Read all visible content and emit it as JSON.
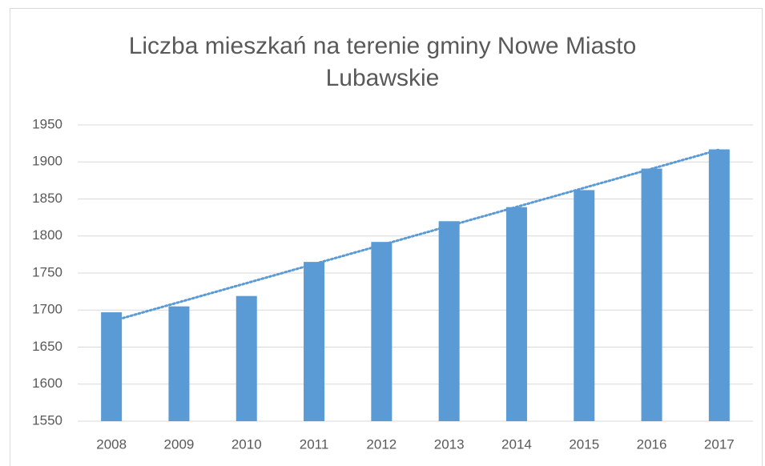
{
  "chart_data": {
    "type": "bar",
    "title": "Liczba mieszkań na terenie gminy Nowe Miasto Lubawskie",
    "categories": [
      "2008",
      "2009",
      "2010",
      "2011",
      "2012",
      "2013",
      "2014",
      "2015",
      "2016",
      "2017"
    ],
    "values": [
      1697,
      1705,
      1719,
      1765,
      1792,
      1820,
      1839,
      1862,
      1891,
      1917
    ],
    "color": "#5b9bd5",
    "ylim": [
      1550,
      1950
    ],
    "yticks": [
      1550,
      1600,
      1650,
      1700,
      1750,
      1800,
      1850,
      1900,
      1950
    ],
    "grid": true,
    "trendline": "linear"
  }
}
